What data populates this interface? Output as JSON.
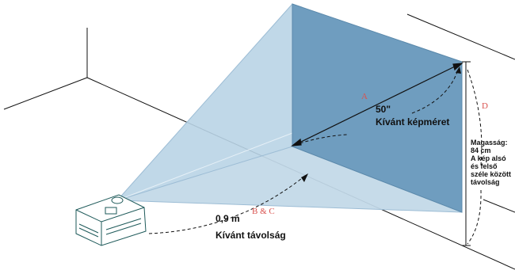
{
  "labels": {
    "a": "A",
    "d": "D",
    "bc": "B & C",
    "diagonal": "50\"",
    "diagonal_caption": "Kívánt képméret",
    "distance": "0,9 m",
    "distance_caption": "Kívánt távolság",
    "height_title": "Magasság:",
    "height_value": "84 cm",
    "height_note_1": "A kép alsó",
    "height_note_2": "és felső",
    "height_note_3": "széle között",
    "height_note_4": "távolság"
  },
  "colors": {
    "screen_fill": "#6f9dbf",
    "beam_fill": "#b9d3e6",
    "line": "#111111",
    "letter_accent": "#d9534f"
  }
}
